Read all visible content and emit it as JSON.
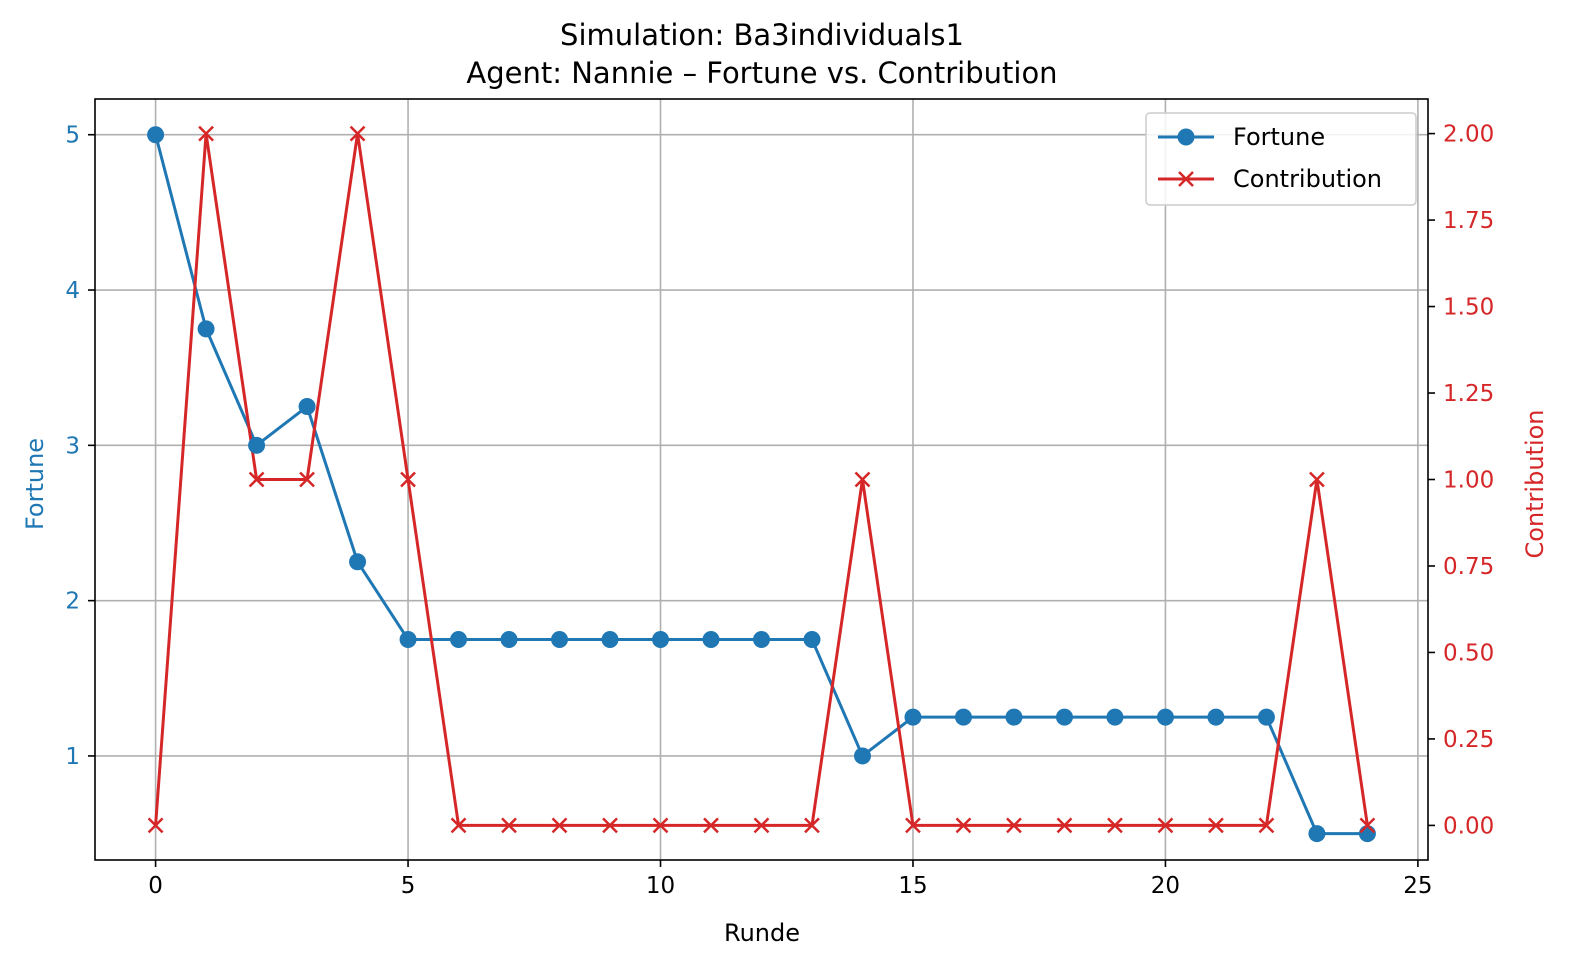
{
  "chart_data": {
    "type": "line",
    "title": "Simulation: Ba3individuals1",
    "subtitle": "Agent: Nannie – Fortune vs. Contribution",
    "xlabel": "Runde",
    "ylabel_left": "Fortune",
    "ylabel_right": "Contribution",
    "xlim": [
      -1.2,
      25.2
    ],
    "ylim_left": [
      0.33,
      5.23
    ],
    "ylim_right": [
      -0.1,
      2.1
    ],
    "x_ticks": [
      "0",
      "5",
      "10",
      "15",
      "20",
      "25"
    ],
    "y_ticks_left": [
      "1",
      "2",
      "3",
      "4",
      "5"
    ],
    "y_ticks_right": [
      "0.00",
      "0.25",
      "0.50",
      "0.75",
      "1.00",
      "1.25",
      "1.50",
      "1.75",
      "2.00"
    ],
    "grid": true,
    "legend_position": "upper-right",
    "x": [
      0,
      1,
      2,
      3,
      4,
      5,
      6,
      7,
      8,
      9,
      10,
      11,
      12,
      13,
      14,
      15,
      16,
      17,
      18,
      19,
      20,
      21,
      22,
      23,
      24
    ],
    "series": [
      {
        "name": "Fortune",
        "axis": "left",
        "color": "#1f77b4",
        "marker": "circle",
        "values": [
          5,
          3.75,
          3,
          3.25,
          2.25,
          1.75,
          1.75,
          1.75,
          1.75,
          1.75,
          1.75,
          1.75,
          1.75,
          1.75,
          1,
          1.25,
          1.25,
          1.25,
          1.25,
          1.25,
          1.25,
          1.25,
          1.25,
          0.5,
          0.5
        ]
      },
      {
        "name": "Contribution",
        "axis": "right",
        "color": "#d62728",
        "marker": "x",
        "values": [
          0,
          2,
          1,
          1,
          2,
          1,
          0,
          0,
          0,
          0,
          0,
          0,
          0,
          0,
          1,
          0,
          0,
          0,
          0,
          0,
          0,
          0,
          0,
          1,
          0
        ]
      }
    ]
  }
}
